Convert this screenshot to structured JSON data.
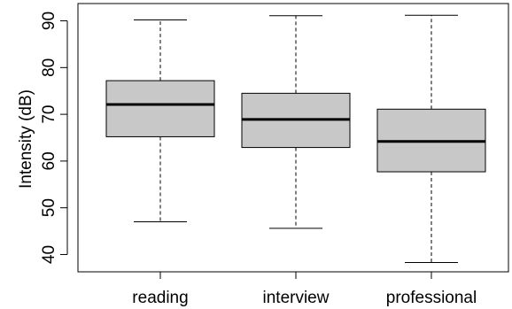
{
  "chart_data": {
    "type": "boxplot",
    "title": "",
    "xlabel": "",
    "ylabel": "Intensity (dB)",
    "ylim": [
      36.3,
      93.7
    ],
    "yticks": [
      40,
      50,
      60,
      70,
      80,
      90
    ],
    "ytick_labels": [
      "40",
      "50",
      "60",
      "70",
      "80",
      "90"
    ],
    "grid": false,
    "box_fill": "#c8c8c8",
    "categories": [
      "reading",
      "interview",
      "professional"
    ],
    "boxes": [
      {
        "name": "reading",
        "whisker_low": 47.0,
        "q1": 65.2,
        "median": 72.1,
        "q3": 77.2,
        "whisker_high": 90.2
      },
      {
        "name": "interview",
        "whisker_low": 45.6,
        "q1": 62.9,
        "median": 68.9,
        "q3": 74.5,
        "whisker_high": 91.1
      },
      {
        "name": "professional",
        "whisker_low": 38.3,
        "q1": 57.7,
        "median": 64.2,
        "q3": 71.1,
        "whisker_high": 91.2
      }
    ]
  }
}
